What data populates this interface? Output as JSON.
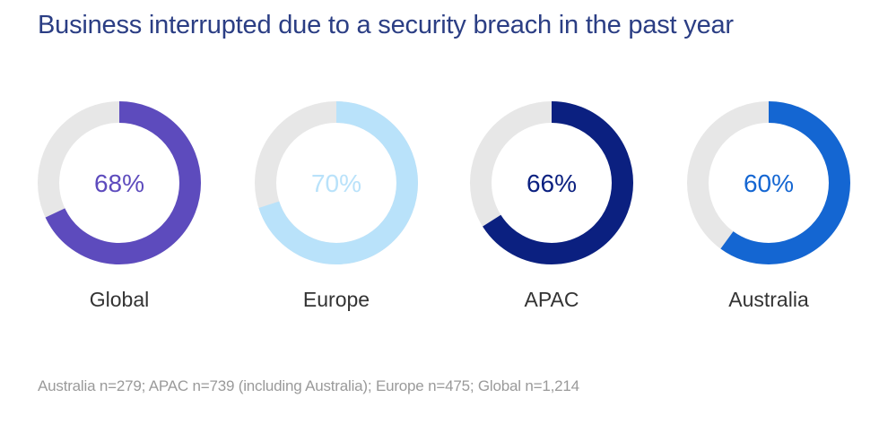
{
  "chart_data": {
    "type": "donut",
    "title": "Business interrupted due to a security breach in the past year",
    "unit": "%",
    "series": [
      {
        "label": "Global",
        "value": 68,
        "display": "68%",
        "color": "#5d4bbd"
      },
      {
        "label": "Europe",
        "value": 70,
        "display": "70%",
        "color": "#b9e2fa"
      },
      {
        "label": "APAC",
        "value": 66,
        "display": "66%",
        "color": "#0b2080"
      },
      {
        "label": "Australia",
        "value": 60,
        "display": "60%",
        "color": "#1466d2"
      }
    ],
    "track_color": "#e7e7e7",
    "footnote": "Australia n=279; APAC n=739 (including Australia); Europe n=475; Global n=1,214"
  }
}
